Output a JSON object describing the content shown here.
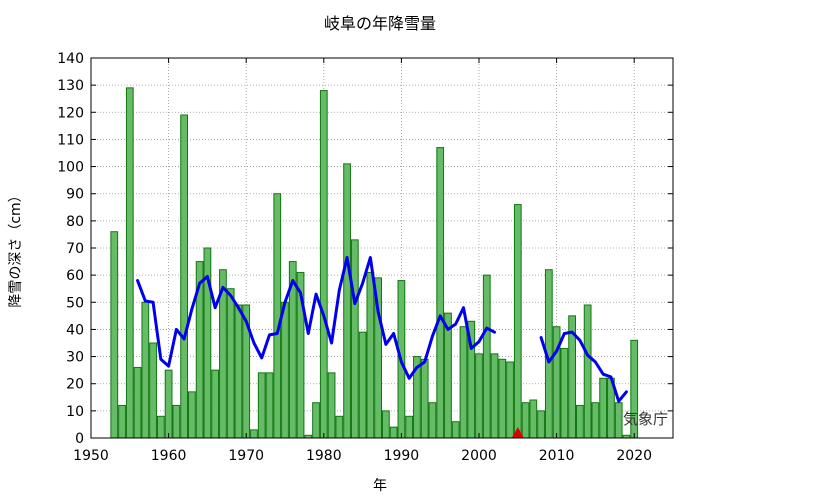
{
  "chart_data": {
    "type": "bar",
    "title": "岐阜の年降雪量",
    "xlabel": "年",
    "ylabel": "降雪の深さ（cm）",
    "source": "気象庁",
    "xlim": [
      1950,
      2025
    ],
    "ylim": [
      0,
      140
    ],
    "xticks": [
      1950,
      1960,
      1970,
      1980,
      1990,
      2000,
      2010,
      2020
    ],
    "yticks": [
      0,
      10,
      20,
      30,
      40,
      50,
      60,
      70,
      80,
      90,
      100,
      110,
      120,
      130,
      140
    ],
    "grid": true,
    "bar_color": "#66bb66",
    "bar_edge_color": "#117711",
    "line_color": "#0000ee",
    "marker_color": "#dd0000",
    "bars": {
      "x": [
        1953,
        1954,
        1955,
        1956,
        1957,
        1958,
        1959,
        1960,
        1961,
        1962,
        1963,
        1964,
        1965,
        1966,
        1967,
        1968,
        1969,
        1970,
        1971,
        1972,
        1973,
        1974,
        1975,
        1976,
        1977,
        1978,
        1979,
        1980,
        1981,
        1982,
        1983,
        1984,
        1985,
        1986,
        1987,
        1988,
        1989,
        1990,
        1991,
        1992,
        1993,
        1994,
        1995,
        1996,
        1997,
        1998,
        1999,
        2000,
        2001,
        2002,
        2003,
        2004,
        2005,
        2006,
        2007,
        2008,
        2009,
        2010,
        2011,
        2012,
        2013,
        2014,
        2015,
        2016,
        2017,
        2018,
        2019,
        2020
      ],
      "values": [
        76,
        12,
        129,
        26,
        50,
        35,
        8,
        25,
        12,
        119,
        17,
        65,
        70,
        25,
        62,
        55,
        49,
        49,
        3,
        24,
        24,
        90,
        50,
        65,
        61,
        1,
        13,
        128,
        24,
        8,
        101,
        73,
        39,
        61,
        59,
        10,
        4,
        58,
        8,
        30,
        29,
        13,
        107,
        46,
        6,
        41,
        43,
        31,
        60,
        31,
        29,
        28,
        86,
        13,
        14,
        10,
        62,
        41,
        33,
        45,
        12,
        49,
        13,
        22,
        22,
        13,
        1,
        36
      ]
    },
    "series": [
      {
        "values": [
          [
            1956,
            58
          ],
          [
            1957,
            50.5
          ],
          [
            1958,
            50
          ],
          [
            1959,
            29
          ],
          [
            1960,
            26.5
          ],
          [
            1961,
            40
          ],
          [
            1962,
            36.5
          ],
          [
            1963,
            47.5
          ],
          [
            1964,
            57
          ],
          [
            1965,
            59.5
          ],
          [
            1966,
            48
          ],
          [
            1967,
            55.5
          ],
          [
            1968,
            52.5
          ],
          [
            1969,
            48
          ],
          [
            1970,
            43
          ],
          [
            1971,
            35
          ],
          [
            1972,
            29.5
          ],
          [
            1973,
            38
          ],
          [
            1974,
            38.5
          ],
          [
            1975,
            50
          ],
          [
            1976,
            58
          ],
          [
            1977,
            53.5
          ],
          [
            1978,
            38.5
          ],
          [
            1979,
            53
          ],
          [
            1980,
            45
          ],
          [
            1981,
            35
          ],
          [
            1982,
            54.5
          ],
          [
            1983,
            66.5
          ],
          [
            1984,
            49.5
          ],
          [
            1985,
            57
          ],
          [
            1986,
            66.5
          ],
          [
            1987,
            46.5
          ],
          [
            1988,
            34.5
          ],
          [
            1989,
            38.5
          ],
          [
            1990,
            28
          ],
          [
            1991,
            22
          ],
          [
            1992,
            26
          ],
          [
            1993,
            28
          ],
          [
            1994,
            37.5
          ],
          [
            1995,
            45
          ],
          [
            1996,
            40
          ],
          [
            1997,
            42
          ],
          [
            1998,
            48
          ],
          [
            1999,
            33
          ],
          [
            2000,
            35.5
          ],
          [
            2001,
            40.5
          ],
          [
            2002,
            39
          ],
          null,
          [
            2008,
            37
          ],
          [
            2009,
            28
          ],
          [
            2010,
            32
          ],
          [
            2011,
            38.5
          ],
          [
            2012,
            39
          ],
          [
            2013,
            36
          ],
          [
            2014,
            30.5
          ],
          [
            2015,
            28
          ],
          [
            2016,
            23.5
          ],
          [
            2017,
            22.5
          ],
          [
            2018,
            13.5
          ],
          [
            2019,
            17
          ]
        ]
      }
    ],
    "markers": [
      {
        "x": 2005,
        "y": 0,
        "shape": "triangle"
      }
    ]
  }
}
